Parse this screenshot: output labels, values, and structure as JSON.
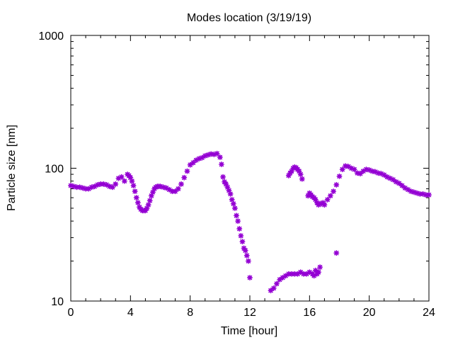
{
  "chart_data": {
    "type": "scatter",
    "title": "Modes location (3/19/19)",
    "xlabel": "Time [hour]",
    "ylabel": "Particle size [nm]",
    "xlim": [
      0,
      24
    ],
    "ylim": [
      10,
      1000
    ],
    "yscale": "log",
    "grid": false,
    "xticks": [
      0,
      4,
      8,
      12,
      16,
      20,
      24
    ],
    "xtick_labels": [
      "0",
      "4",
      "8",
      "12",
      "16",
      "20",
      "24"
    ],
    "yticks": [
      10,
      100,
      1000
    ],
    "ytick_labels": [
      "10",
      "100",
      "1000"
    ],
    "marker": "*",
    "color": "#9400d3",
    "series": [
      {
        "x": [
          0.0,
          0.2,
          0.4,
          0.6,
          0.8,
          1.0,
          1.2,
          1.4,
          1.6,
          1.8,
          2.0,
          2.2,
          2.4,
          2.6,
          2.8,
          3.0,
          3.2,
          3.4,
          3.6,
          3.8,
          3.9,
          4.0,
          4.1,
          4.2,
          4.3,
          4.4,
          4.5,
          4.6,
          4.7,
          4.8,
          4.9,
          5.0,
          5.1,
          5.2,
          5.3,
          5.4,
          5.5,
          5.6,
          5.7,
          5.8,
          5.9,
          6.0,
          6.2,
          6.4,
          6.6,
          6.8,
          7.0,
          7.2,
          7.4,
          7.6,
          7.8,
          8.0,
          8.2,
          8.4,
          8.6,
          8.8,
          9.0,
          9.2,
          9.4,
          9.6,
          9.8,
          10.0,
          10.1,
          10.2,
          10.3,
          10.4,
          10.5,
          10.6,
          10.7,
          10.8,
          10.9,
          11.0,
          11.1,
          11.2,
          11.3,
          11.4,
          11.5,
          11.6,
          11.7,
          11.8,
          11.9,
          12.0
        ],
        "y": [
          74,
          73,
          72,
          72,
          71,
          70,
          70,
          72,
          73,
          75,
          76,
          76,
          75,
          73,
          72,
          76,
          84,
          86,
          80,
          90,
          88,
          85,
          80,
          74,
          67,
          60,
          55,
          51,
          49,
          48,
          48,
          48,
          50,
          53,
          57,
          62,
          66,
          70,
          72,
          73,
          73,
          73,
          72,
          71,
          69,
          67,
          67,
          70,
          76,
          85,
          95,
          106,
          110,
          115,
          118,
          120,
          124,
          126,
          128,
          127,
          129,
          121,
          107,
          86,
          79,
          76,
          72,
          68,
          64,
          58,
          54,
          50,
          44,
          40,
          35,
          31,
          28,
          25,
          24,
          22,
          20,
          15
        ]
      },
      {
        "x": [
          13.4,
          13.6,
          13.8,
          14.0,
          14.2,
          14.4,
          14.6,
          14.8,
          15.0,
          15.2,
          15.4,
          15.6,
          15.8,
          16.0,
          16.2,
          16.3,
          16.4,
          16.5,
          16.6,
          16.7
        ],
        "y": [
          12,
          12.5,
          13.5,
          14.5,
          15,
          15.5,
          16,
          16,
          16,
          16,
          16.5,
          16,
          16,
          16.5,
          16,
          15.5,
          17,
          16,
          16.5,
          18
        ]
      },
      {
        "x": [
          14.6,
          14.7,
          14.8,
          14.9,
          15.0,
          15.1,
          15.2,
          15.3,
          15.4,
          15.5
        ],
        "y": [
          88,
          92,
          95,
          100,
          102,
          101,
          98,
          95,
          90,
          83
        ]
      },
      {
        "x": [
          15.9,
          16.0,
          16.1,
          16.2,
          16.3,
          16.4,
          16.5,
          16.6,
          16.7,
          16.8,
          16.9,
          17.0,
          17.2,
          17.4,
          17.6,
          17.8,
          18.0,
          18.2,
          18.4,
          18.6,
          18.8,
          19.0,
          19.2,
          19.4,
          19.6,
          19.8,
          20.0,
          20.2,
          20.4,
          20.6,
          20.8,
          21.0,
          21.2,
          21.4,
          21.6,
          21.8,
          22.0,
          22.2,
          22.4,
          22.6,
          22.8,
          23.0,
          23.2,
          23.4,
          23.6,
          23.8,
          24.0
        ],
        "y": [
          62,
          65,
          63,
          61,
          60,
          58,
          55,
          53,
          54,
          54,
          55,
          53,
          58,
          62,
          67,
          75,
          87,
          98,
          104,
          103,
          100,
          98,
          92,
          91,
          95,
          98,
          97,
          95,
          94,
          92,
          91,
          89,
          86,
          84,
          82,
          79,
          77,
          74,
          71,
          69,
          67,
          66,
          65,
          64,
          64,
          63,
          63
        ]
      },
      {
        "x": [
          17.8
        ],
        "y": [
          23
        ]
      }
    ]
  }
}
